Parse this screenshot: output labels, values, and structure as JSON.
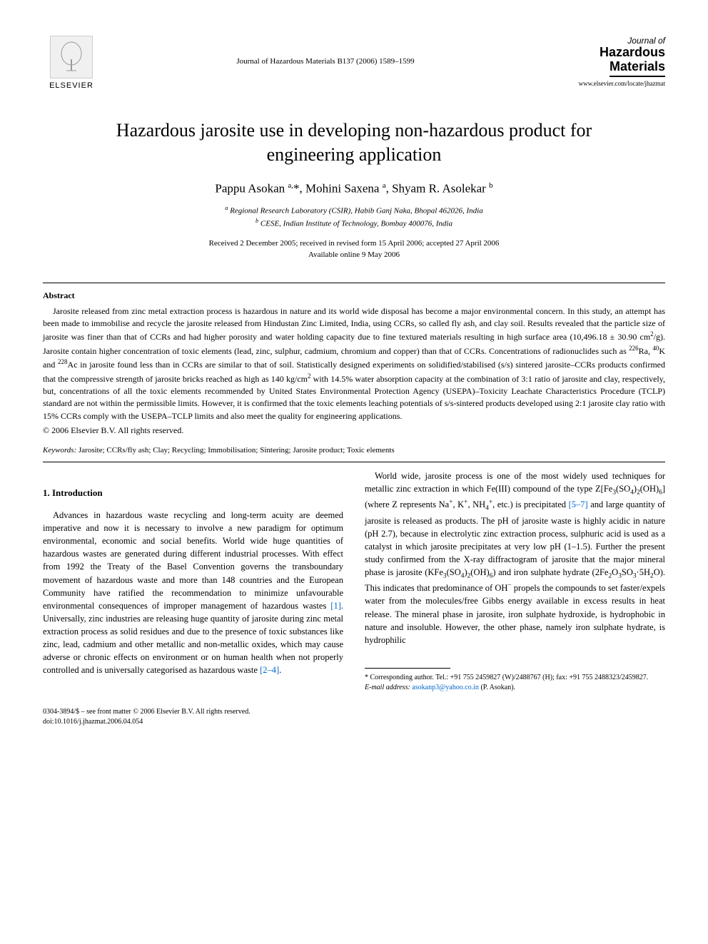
{
  "header": {
    "publisher": "ELSEVIER",
    "journal_ref": "Journal of Hazardous Materials B137 (2006) 1589–1599",
    "journal_name_line1": "Journal of",
    "journal_name_line2": "Hazardous",
    "journal_name_line3": "Materials",
    "journal_url": "www.elsevier.com/locate/jhazmat"
  },
  "title": "Hazardous jarosite use in developing non-hazardous product for engineering application",
  "authors_html": "Pappu Asokan <sup>a,</sup>*, Mohini Saxena <sup>a</sup>, Shyam R. Asolekar <sup>b</sup>",
  "affiliations": {
    "a": "Regional Research Laboratory (CSIR), Habib Ganj Naka, Bhopal 462026, India",
    "b": "CESE, Indian Institute of Technology, Bombay 400076, India"
  },
  "dates": {
    "received": "Received 2 December 2005; received in revised form 15 April 2006; accepted 27 April 2006",
    "online": "Available online 9 May 2006"
  },
  "abstract": {
    "heading": "Abstract",
    "text_html": "Jarosite released from zinc metal extraction process is hazardous in nature and its world wide disposal has become a major environmental concern. In this study, an attempt has been made to immobilise and recycle the jarosite released from Hindustan Zinc Limited, India, using CCRs, so called fly ash, and clay soil. Results revealed that the particle size of jarosite was finer than that of CCRs and had higher porosity and water holding capacity due to fine textured materials resulting in high surface area (10,496.18 ± 30.90 cm<sup>2</sup>/g). Jarosite contain higher concentration of toxic elements (lead, zinc, sulphur, cadmium, chromium and copper) than that of CCRs. Concentrations of radionuclides such as <sup>226</sup>Ra, <sup>40</sup>K and <sup>228</sup>Ac in jarosite found less than in CCRs are similar to that of soil. Statistically designed experiments on solidified/stabilised (s/s) sintered jarosite–CCRs products confirmed that the compressive strength of jarosite bricks reached as high as 140 kg/cm<sup>2</sup> with 14.5% water absorption capacity at the combination of 3:1 ratio of jarosite and clay, respectively, but, concentrations of all the toxic elements recommended by United States Environmental Protection Agency (USEPA)–Toxicity Leachate Characteristics Procedure (TCLP) standard are not within the permissible limits. However, it is confirmed that the toxic elements leaching potentials of s/s-sintered products developed using 2:1 jarosite clay ratio with 15% CCRs comply with the USEPA–TCLP limits and also meet the quality for engineering applications.",
    "copyright": "© 2006 Elsevier B.V. All rights reserved."
  },
  "keywords": {
    "label": "Keywords:",
    "text": "Jarosite; CCRs/fly ash; Clay; Recycling; Immobilisation; Sintering; Jarosite product; Toxic elements"
  },
  "section1": {
    "heading": "1. Introduction",
    "para1_html": "Advances in hazardous waste recycling and long-term acuity are deemed imperative and now it is necessary to involve a new paradigm for optimum environmental, economic and social benefits. World wide huge quantities of hazardous wastes are generated during different industrial processes. With effect from 1992 the Treaty of the Basel Convention governs the transboundary movement of hazardous waste and more than 148 countries and the European Community have ratified the recommendation to minimize unfavourable environmental consequences of improper management of hazardous wastes <span class=\"ref-link\">[1]</span>. Universally, zinc industries are releasing huge quantity of jarosite during zinc metal extraction process as solid residues and due to the presence of toxic substances like zinc, lead, cadmium and other metallic and non-metallic oxides, which may cause adverse or chronic effects on environment or on human health when not properly controlled and is universally categorised as hazardous waste <span class=\"ref-link\">[2–4]</span>.",
    "para2_html": "World wide, jarosite process is one of the most widely used techniques for metallic zinc extraction in which Fe(III) compound of the type Z[Fe<sub>3</sub>(SO<sub>4</sub>)<sub>2</sub>(OH)<sub>6</sub>] (where Z represents Na<sup>+</sup>, K<sup>+</sup>, NH<sub>4</sub><sup>+</sup>, etc.) is precipitated <span class=\"ref-link\">[5–7]</span> and large quantity of jarosite is released as products. The pH of jarosite waste is highly acidic in nature (pH 2.7), because in electrolytic zinc extraction process, sulphuric acid is used as a catalyst in which jarosite precipitates at very low pH (1–1.5). Further the present study confirmed from the X-ray diffractogram of jarosite that the major mineral phase is jarosite (KFe<sub>3</sub>(SO<sub>4</sub>)<sub>2</sub>(OH)<sub>6</sub>) and iron sulphate hydrate (2Fe<sub>2</sub>O<sub>3</sub>SO<sub>3</sub>·5H<sub>2</sub>O). This indicates that predominance of OH<sup>−</sup> propels the compounds to set faster/expels water from the molecules/free Gibbs energy available in excess results in heat release. The mineral phase in jarosite, iron sulphate hydroxide, is hydrophobic in nature and insoluble. However, the other phase, namely iron sulphate hydrate, is hydrophilic"
  },
  "footnotes": {
    "corresponding": "* Corresponding author. Tel.: +91 755 2459827 (W)/2488767 (H); fax: +91 755 2488323/2459827.",
    "email_label": "E-mail address:",
    "email": "asokanp3@yahoo.co.in",
    "email_attrib": "(P. Asokan)."
  },
  "footer": {
    "issn": "0304-3894/$ – see front matter © 2006 Elsevier B.V. All rights reserved.",
    "doi": "doi:10.1016/j.jhazmat.2006.04.054"
  },
  "colors": {
    "text": "#000000",
    "link": "#0066cc",
    "background": "#ffffff"
  },
  "typography": {
    "title_fontsize": 26,
    "authors_fontsize": 17,
    "body_fontsize": 12.5,
    "abstract_fontsize": 12,
    "footnote_fontsize": 10
  }
}
